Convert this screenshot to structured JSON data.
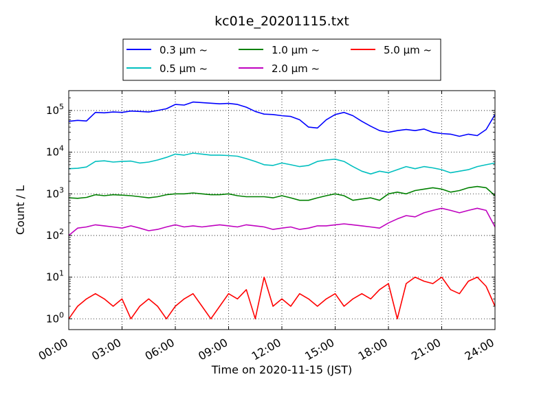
{
  "chart_data": {
    "type": "line",
    "title": "kc01e_20201115.txt",
    "xlabel": "Time on 2020-11-15 (JST)",
    "ylabel": "Count / L",
    "yscale": "log",
    "xlim": [
      "00:00",
      "24:00"
    ],
    "ylim": [
      0.55,
      300000
    ],
    "grid": true,
    "legend_position": "top-center",
    "x_ticks": [
      "00:00",
      "03:00",
      "06:00",
      "09:00",
      "12:00",
      "15:00",
      "18:00",
      "21:00",
      "24:00"
    ],
    "y_ticks": [
      {
        "value": 1,
        "base": "10",
        "exp": "0"
      },
      {
        "value": 10,
        "base": "10",
        "exp": "1"
      },
      {
        "value": 100,
        "base": "10",
        "exp": "2"
      },
      {
        "value": 1000,
        "base": "10",
        "exp": "3"
      },
      {
        "value": 10000,
        "base": "10",
        "exp": "4"
      },
      {
        "value": 100000,
        "base": "10",
        "exp": "5"
      }
    ],
    "x_hours": [
      0,
      0.5,
      1,
      1.5,
      2,
      2.5,
      3,
      3.5,
      4,
      4.5,
      5,
      5.5,
      6,
      6.5,
      7,
      7.5,
      8,
      8.5,
      9,
      9.5,
      10,
      10.5,
      11,
      11.5,
      12,
      12.5,
      13,
      13.5,
      14,
      14.5,
      15,
      15.5,
      16,
      16.5,
      17,
      17.5,
      18,
      18.5,
      19,
      19.5,
      20,
      20.5,
      21,
      21.5,
      22,
      22.5,
      23,
      23.5,
      24
    ],
    "series": [
      {
        "name": "0.3 μm ~",
        "color": "#0000ff",
        "values": [
          55000,
          58000,
          56000,
          90000,
          88000,
          92000,
          90000,
          97000,
          95000,
          92000,
          100000,
          110000,
          140000,
          135000,
          160000,
          155000,
          150000,
          145000,
          148000,
          140000,
          120000,
          95000,
          82000,
          80000,
          75000,
          72000,
          60000,
          40000,
          38000,
          60000,
          80000,
          90000,
          75000,
          55000,
          42000,
          33000,
          30000,
          33000,
          35000,
          33000,
          36000,
          30000,
          28000,
          27000,
          24000,
          27000,
          25000,
          35000,
          80000
        ]
      },
      {
        "name": "0.5 μm ~",
        "color": "#00bfbf",
        "values": [
          4000,
          4100,
          4400,
          6000,
          6200,
          5800,
          6000,
          6100,
          5500,
          5800,
          6500,
          7500,
          9000,
          8500,
          9500,
          9000,
          8500,
          8500,
          8300,
          8000,
          7000,
          6000,
          5000,
          4800,
          5500,
          5000,
          4500,
          4800,
          6000,
          6500,
          6800,
          6000,
          4500,
          3500,
          3000,
          3500,
          3200,
          3800,
          4500,
          4000,
          4500,
          4200,
          3800,
          3200,
          3500,
          3800,
          4500,
          5000,
          5500
        ]
      },
      {
        "name": "1.0 μm ~",
        "color": "#008000",
        "values": [
          800,
          780,
          820,
          950,
          900,
          950,
          930,
          900,
          850,
          800,
          850,
          950,
          1000,
          1000,
          1050,
          1000,
          950,
          950,
          1000,
          900,
          850,
          850,
          850,
          800,
          900,
          800,
          700,
          700,
          800,
          900,
          1000,
          900,
          700,
          750,
          800,
          700,
          1000,
          1100,
          1000,
          1200,
          1300,
          1400,
          1300,
          1100,
          1200,
          1400,
          1500,
          1400,
          900
        ]
      },
      {
        "name": "2.0 μm ~",
        "color": "#bf00bf",
        "values": [
          100,
          150,
          160,
          180,
          170,
          160,
          150,
          170,
          150,
          130,
          140,
          160,
          180,
          160,
          170,
          160,
          170,
          180,
          170,
          160,
          180,
          170,
          160,
          140,
          150,
          160,
          140,
          150,
          170,
          170,
          180,
          190,
          180,
          170,
          160,
          150,
          200,
          250,
          300,
          280,
          350,
          400,
          450,
          400,
          350,
          400,
          450,
          400,
          160
        ]
      },
      {
        "name": "5.0 μm ~",
        "color": "#ff0000",
        "values": [
          1,
          2,
          3,
          4,
          3,
          2,
          3,
          1,
          2,
          3,
          2,
          1,
          2,
          3,
          4,
          2,
          1,
          2,
          4,
          3,
          5,
          1,
          10,
          2,
          3,
          2,
          4,
          3,
          2,
          3,
          4,
          2,
          3,
          4,
          3,
          5,
          7,
          1,
          7,
          10,
          8,
          7,
          10,
          5,
          4,
          8,
          10,
          6,
          2
        ]
      }
    ]
  }
}
